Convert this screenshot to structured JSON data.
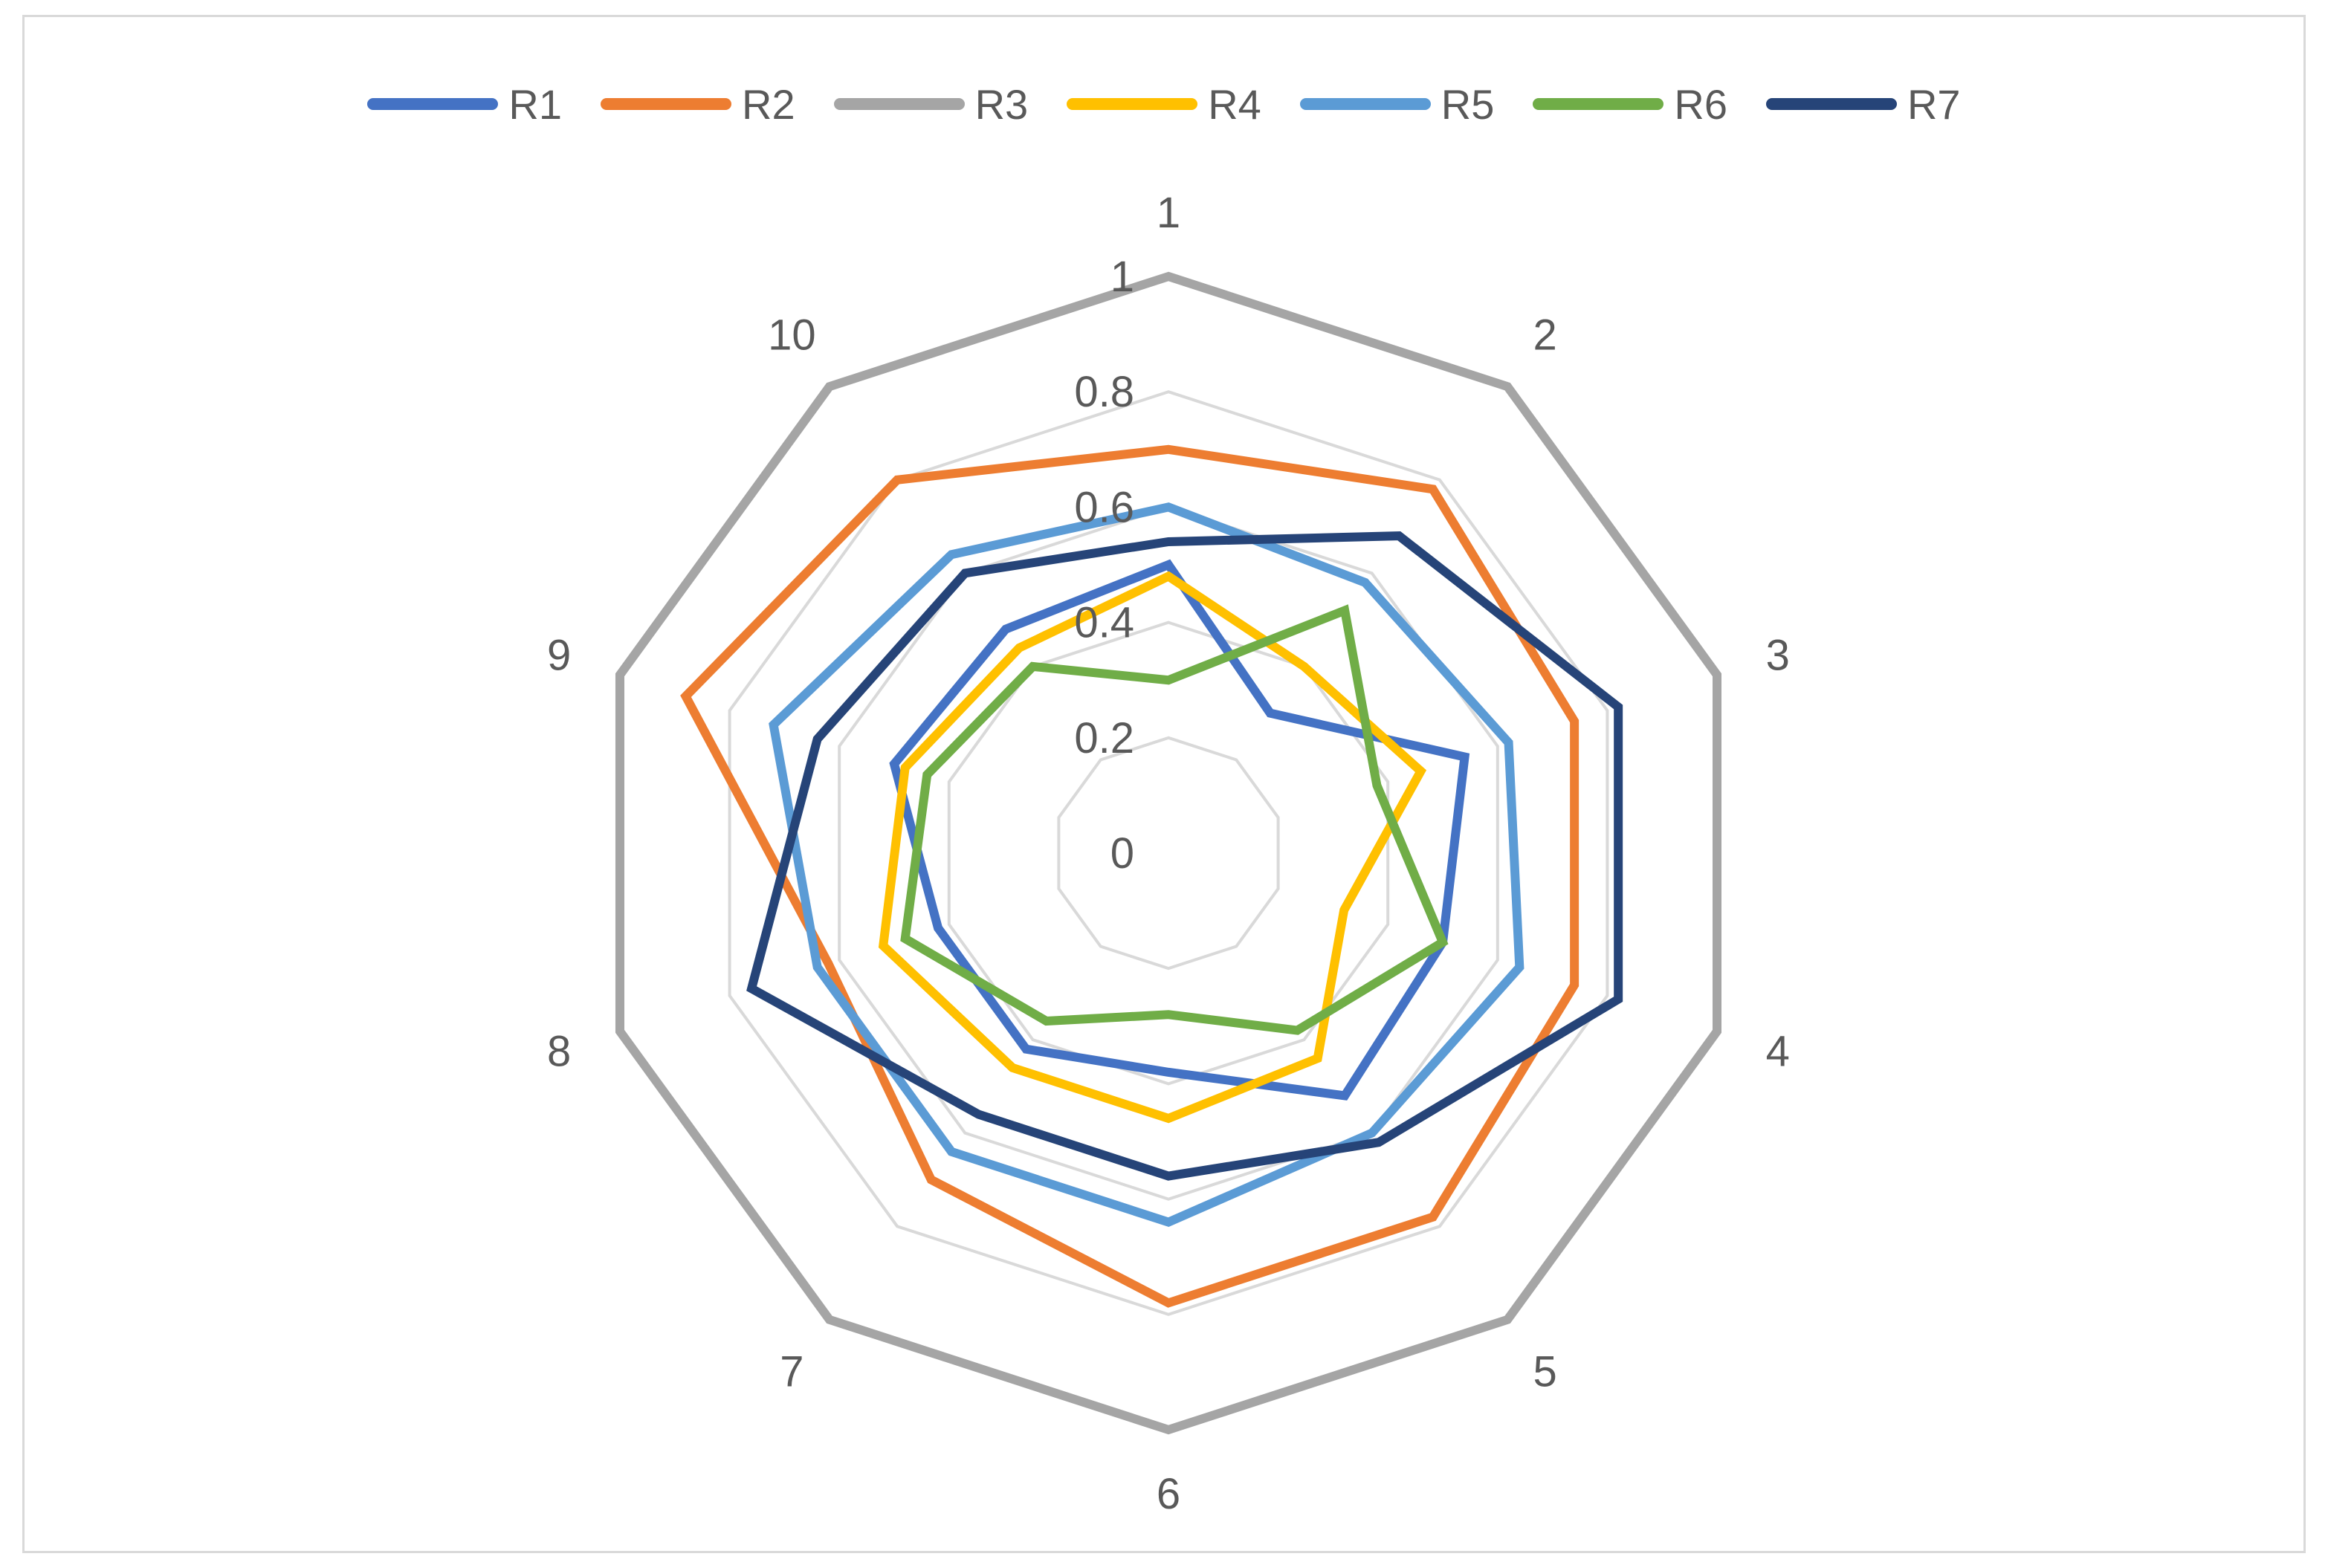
{
  "chart_data": {
    "type": "radar",
    "categories": [
      "1",
      "2",
      "3",
      "4",
      "5",
      "6",
      "7",
      "8",
      "9",
      "10"
    ],
    "radial_ticks": [
      "0",
      "0.2",
      "0.4",
      "0.6",
      "0.8",
      "1"
    ],
    "rlim": [
      0,
      1
    ],
    "grid": true,
    "legend_position": "top",
    "series": [
      {
        "name": "R1",
        "color": "#4472C4",
        "values": [
          0.5,
          0.3,
          0.54,
          0.5,
          0.52,
          0.38,
          0.42,
          0.42,
          0.5,
          0.48
        ]
      },
      {
        "name": "R2",
        "color": "#ED7D31",
        "values": [
          0.7,
          0.78,
          0.74,
          0.74,
          0.78,
          0.78,
          0.7,
          0.62,
          0.88,
          0.8
        ]
      },
      {
        "name": "R3",
        "color": "#A5A5A5",
        "values": [
          1.0,
          1.0,
          1.0,
          1.0,
          1.0,
          1.0,
          1.0,
          1.0,
          1.0,
          1.0
        ]
      },
      {
        "name": "R4",
        "color": "#FFC000",
        "values": [
          0.48,
          0.4,
          0.46,
          0.32,
          0.44,
          0.46,
          0.46,
          0.52,
          0.48,
          0.44
        ]
      },
      {
        "name": "R5",
        "color": "#5B9BD5",
        "values": [
          0.6,
          0.58,
          0.62,
          0.64,
          0.6,
          0.64,
          0.64,
          0.64,
          0.72,
          0.64
        ]
      },
      {
        "name": "R6",
        "color": "#70AD47",
        "values": [
          0.3,
          0.52,
          0.38,
          0.5,
          0.38,
          0.28,
          0.36,
          0.48,
          0.44,
          0.4
        ]
      },
      {
        "name": "R7",
        "color": "#264478",
        "values": [
          0.54,
          0.68,
          0.82,
          0.82,
          0.62,
          0.56,
          0.56,
          0.76,
          0.64,
          0.6
        ]
      }
    ]
  }
}
